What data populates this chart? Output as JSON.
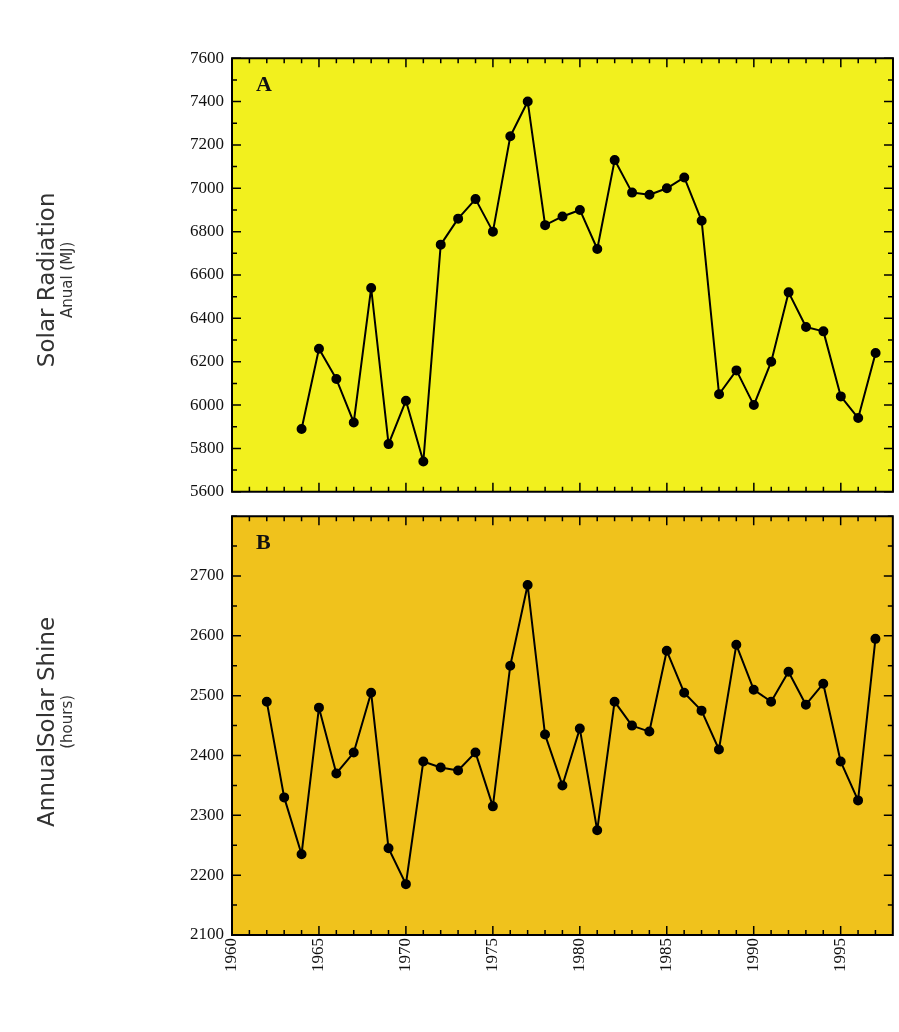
{
  "chart_data": [
    {
      "type": "line",
      "ylabel": "Solar Radiation\nAnual (MJ)",
      "annotations": [
        "A"
      ],
      "x": [
        1964,
        1965,
        1966,
        1967,
        1968,
        1969,
        1970,
        1971,
        1972,
        1973,
        1974,
        1975,
        1976,
        1977,
        1978,
        1979,
        1980,
        1981,
        1982,
        1983,
        1984,
        1985,
        1986,
        1987,
        1988,
        1989,
        1990,
        1991,
        1992,
        1993,
        1994,
        1995,
        1996,
        1997
      ],
      "series": [
        {
          "color": "#000000",
          "values": [
            5890,
            6260,
            6120,
            5920,
            6540,
            5820,
            6020,
            5740,
            6740,
            6860,
            6950,
            6800,
            7240,
            7400,
            6830,
            6870,
            6900,
            6720,
            7130,
            6980,
            6970,
            7000,
            7050,
            6850,
            6050,
            6160,
            6000,
            6200,
            6520,
            6360,
            6340,
            6040,
            5940,
            6240
          ]
        }
      ],
      "xlim": [
        1960,
        1998
      ],
      "xticks": [
        1960,
        {
          "value": 1961,
          "label": null
        },
        {
          "value": 1962,
          "label": null
        },
        {
          "value": 1963,
          "label": null
        },
        {
          "value": 1964,
          "label": null
        },
        1965,
        {
          "value": 1966,
          "label": null
        },
        {
          "value": 1967,
          "label": null
        },
        {
          "value": 1968,
          "label": null
        },
        {
          "value": 1969,
          "label": null
        },
        1970,
        {
          "value": 1971,
          "label": null
        },
        {
          "value": 1972,
          "label": null
        },
        {
          "value": 1973,
          "label": null
        },
        {
          "value": 1974,
          "label": null
        },
        1975,
        {
          "value": 1976,
          "label": null
        },
        {
          "value": 1977,
          "label": null
        },
        {
          "value": 1978,
          "label": null
        },
        {
          "value": 1979,
          "label": null
        },
        1980,
        {
          "value": 1981,
          "label": null
        },
        {
          "value": 1982,
          "label": null
        },
        {
          "value": 1983,
          "label": null
        },
        {
          "value": 1984,
          "label": null
        },
        1985,
        {
          "value": 1986,
          "label": null
        },
        {
          "value": 1987,
          "label": null
        },
        {
          "value": 1988,
          "label": null
        },
        {
          "value": 1989,
          "label": null
        },
        1990,
        {
          "value": 1991,
          "label": null
        },
        {
          "value": 1992,
          "label": null
        },
        {
          "value": 1993,
          "label": null
        },
        {
          "value": 1994,
          "label": null
        },
        1995,
        {
          "value": 1996,
          "label": null
        },
        {
          "value": 1997,
          "label": null
        }
      ],
      "ylim": [
        5600,
        7600
      ],
      "yticks": [
        5600,
        {
          "value": 5700,
          "label": null
        },
        5800,
        {
          "value": 5900,
          "label": null
        },
        6000,
        {
          "value": 6100,
          "label": null
        },
        6200,
        {
          "value": 6300,
          "label": null
        },
        6400,
        {
          "value": 6500,
          "label": null
        },
        6600,
        {
          "value": 6700,
          "label": null
        },
        6800,
        {
          "value": 6900,
          "label": null
        },
        7000,
        {
          "value": 7100,
          "label": null
        },
        7200,
        {
          "value": 7300,
          "label": null
        },
        7400,
        {
          "value": 7500,
          "label": null
        },
        7600
      ],
      "tick_labels": "y",
      "grid": false,
      "legend": false,
      "marker": "circle",
      "line_style": "solid"
    },
    {
      "type": "line",
      "ylabel": "AnnualSolar Shine\n(hours)",
      "annotations": [
        "B"
      ],
      "x": [
        1962,
        1963,
        1964,
        1965,
        1966,
        1967,
        1968,
        1969,
        1970,
        1971,
        1972,
        1973,
        1974,
        1975,
        1976,
        1977,
        1978,
        1979,
        1980,
        1981,
        1982,
        1983,
        1984,
        1985,
        1986,
        1987,
        1988,
        1989,
        1990,
        1991,
        1992,
        1993,
        1994,
        1995,
        1996,
        1997
      ],
      "series": [
        {
          "color": "#000000",
          "values": [
            2490,
            2330,
            2235,
            2480,
            2370,
            2405,
            2505,
            2245,
            2185,
            2390,
            2380,
            2375,
            2405,
            2315,
            2550,
            2685,
            2435,
            2350,
            2445,
            2275,
            2490,
            2450,
            2440,
            2575,
            2505,
            2475,
            2410,
            2585,
            2510,
            2490,
            2540,
            2485,
            2520,
            2390,
            2325,
            2595
          ]
        }
      ],
      "xlim": [
        1960,
        1998
      ],
      "xticks": [
        1960,
        {
          "value": 1961,
          "label": null
        },
        {
          "value": 1962,
          "label": null
        },
        {
          "value": 1963,
          "label": null
        },
        {
          "value": 1964,
          "label": null
        },
        1965,
        {
          "value": 1966,
          "label": null
        },
        {
          "value": 1967,
          "label": null
        },
        {
          "value": 1968,
          "label": null
        },
        {
          "value": 1969,
          "label": null
        },
        1970,
        {
          "value": 1971,
          "label": null
        },
        {
          "value": 1972,
          "label": null
        },
        {
          "value": 1973,
          "label": null
        },
        {
          "value": 1974,
          "label": null
        },
        1975,
        {
          "value": 1976,
          "label": null
        },
        {
          "value": 1977,
          "label": null
        },
        {
          "value": 1978,
          "label": null
        },
        {
          "value": 1979,
          "label": null
        },
        1980,
        {
          "value": 1981,
          "label": null
        },
        {
          "value": 1982,
          "label": null
        },
        {
          "value": 1983,
          "label": null
        },
        {
          "value": 1984,
          "label": null
        },
        1985,
        {
          "value": 1986,
          "label": null
        },
        {
          "value": 1987,
          "label": null
        },
        {
          "value": 1988,
          "label": null
        },
        {
          "value": 1989,
          "label": null
        },
        1990,
        {
          "value": 1991,
          "label": null
        },
        {
          "value": 1992,
          "label": null
        },
        {
          "value": 1993,
          "label": null
        },
        {
          "value": 1994,
          "label": null
        },
        1995,
        {
          "value": 1996,
          "label": null
        },
        {
          "value": 1997,
          "label": null
        }
      ],
      "ylim": [
        2100,
        2800
      ],
      "yticks": [
        2100,
        {
          "value": 2150,
          "label": null
        },
        2200,
        {
          "value": 2250,
          "label": null
        },
        2300,
        {
          "value": 2350,
          "label": null
        },
        2400,
        {
          "value": 2450,
          "label": null
        },
        2500,
        {
          "value": 2550,
          "label": null
        },
        2600,
        {
          "value": 2650,
          "label": null
        },
        2700,
        {
          "value": 2750,
          "label": null
        },
        {
          "value": 2800,
          "label": null
        }
      ],
      "grid": false,
      "legend": false,
      "marker": "circle",
      "line_style": "solid"
    }
  ]
}
